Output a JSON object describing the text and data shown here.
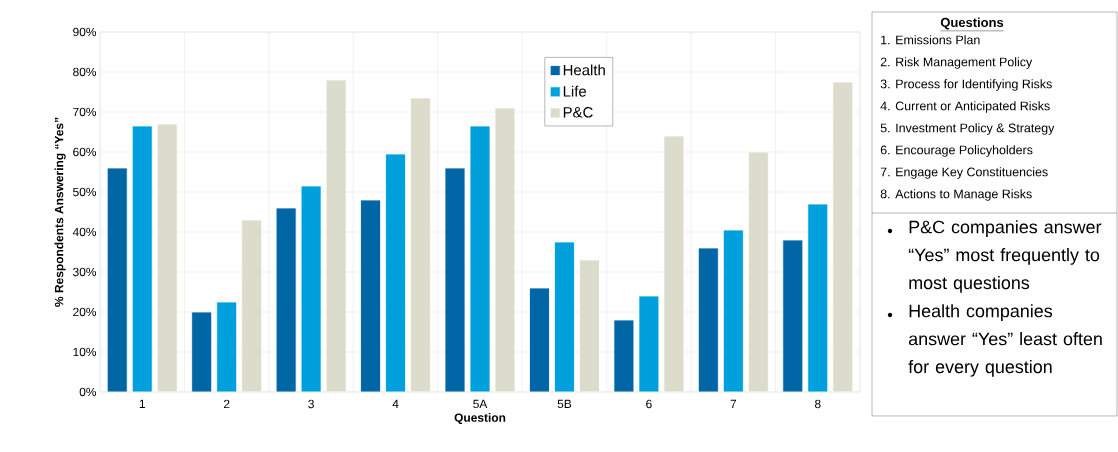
{
  "chart_data": {
    "type": "bar",
    "xlabel": "Question",
    "ylabel": "% Respondents Answering “Yes”",
    "categories": [
      "1",
      "2",
      "3",
      "4",
      "5A",
      "5B",
      "6",
      "7",
      "8"
    ],
    "series": [
      {
        "name": "Health",
        "color": "#0066a6",
        "values": [
          56,
          20,
          46,
          48,
          56,
          26,
          18,
          36,
          38
        ]
      },
      {
        "name": "Life",
        "color": "#00a0dc",
        "values": [
          66.5,
          22.5,
          51.5,
          59.5,
          66.5,
          37.5,
          24,
          40.5,
          47
        ]
      },
      {
        "name": "P&C",
        "color": "#dcdccc",
        "values": [
          67,
          43,
          78,
          73.5,
          71,
          33,
          64,
          60,
          77.5
        ]
      }
    ],
    "ylim": [
      0,
      90
    ],
    "yticks": [
      {
        "value": 0,
        "label": "0%"
      },
      {
        "value": 10,
        "label": "10%"
      },
      {
        "value": 20,
        "label": "20%"
      },
      {
        "value": 30,
        "label": "30%"
      },
      {
        "value": 40,
        "label": "40%"
      },
      {
        "value": 50,
        "label": "50%"
      },
      {
        "value": 60,
        "label": "60%"
      },
      {
        "value": 70,
        "label": "70%"
      },
      {
        "value": 80,
        "label": "80%"
      },
      {
        "value": 90,
        "label": "90%"
      }
    ],
    "grid": true,
    "legend": "top",
    "annotations": [
      "Questions",
      "1. Emissions Plan",
      "2. Risk Management Policy",
      "3. Process for Identifying Risks",
      "4. Current or Anticipated Risks",
      "5. Investment Policy & Strategy",
      "6. Encourage Policyholders",
      "7. Engage Key Constituencies",
      "8. Actions to Manage Risks",
      "P&C companies answer “Yes” most frequently to most questions",
      "Health companies answer “Yes” least often for every question"
    ]
  }
}
